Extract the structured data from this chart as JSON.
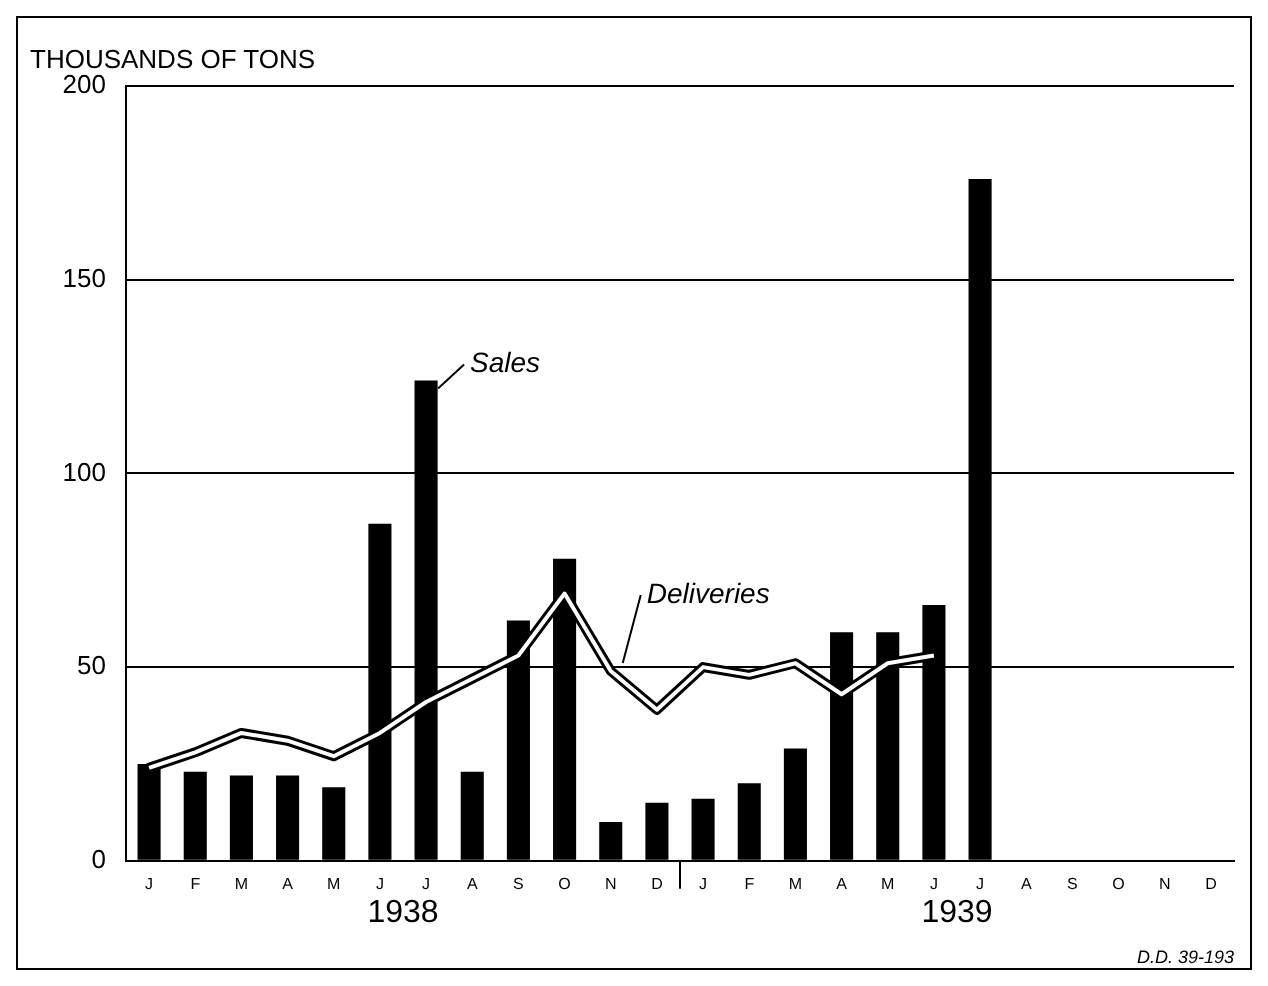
{
  "chart_data": {
    "type": "bar",
    "ylabel": "THOUSANDS OF TONS",
    "categories": [
      "J",
      "F",
      "M",
      "A",
      "M",
      "J",
      "J",
      "A",
      "S",
      "O",
      "N",
      "D",
      "J",
      "F",
      "M",
      "A",
      "M",
      "J",
      "J",
      "A",
      "S",
      "O",
      "N",
      "D"
    ],
    "series": [
      {
        "name": "Sales",
        "color": "#000000",
        "values": [
          25,
          23,
          22,
          22,
          19,
          87,
          124,
          23,
          62,
          78,
          10,
          15,
          16,
          20,
          29,
          59,
          59,
          66,
          176,
          null,
          null,
          null,
          null,
          null
        ]
      },
      {
        "name": "Deliveries",
        "type": "line",
        "color": "#ffffff",
        "values": [
          24,
          28,
          33,
          31,
          27,
          33,
          41,
          47,
          53,
          69,
          49,
          39,
          50,
          48,
          51,
          43,
          51,
          53,
          null,
          null,
          null,
          null,
          null,
          null
        ]
      }
    ],
    "ylim": [
      0,
      200
    ],
    "yticks": [
      0,
      50,
      100,
      150,
      200
    ],
    "grid": "y",
    "marker": "none",
    "annotations": [
      "1938",
      "1939",
      "D.D. 39-193"
    ]
  }
}
